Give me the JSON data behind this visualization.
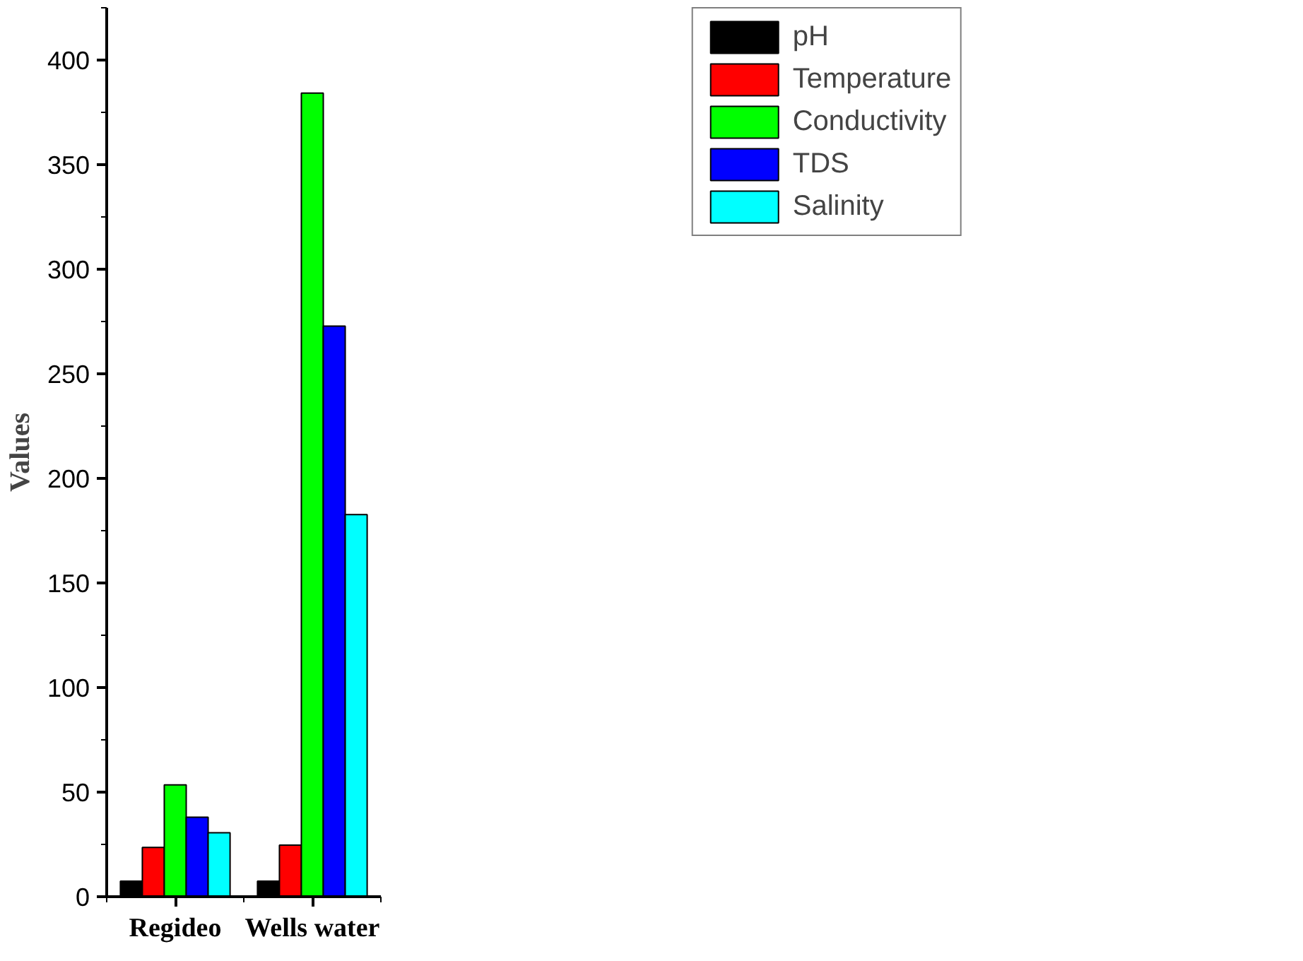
{
  "chart_data": {
    "type": "bar",
    "ylabel": "Values",
    "categories": [
      "Regideo",
      "Wells water"
    ],
    "series": [
      {
        "name": "pH",
        "color": "#000000",
        "values": [
          7.4,
          7.4
        ]
      },
      {
        "name": "Temperature",
        "color": "#ff0000",
        "values": [
          23.6,
          24.7
        ]
      },
      {
        "name": "Conductivity",
        "color": "#00ff00",
        "values": [
          53.5,
          384.2
        ]
      },
      {
        "name": "TDS",
        "color": "#0000ff",
        "values": [
          38,
          272.8
        ]
      },
      {
        "name": "Salinity",
        "color": "#00ffff",
        "values": [
          30.6,
          182.7
        ]
      }
    ],
    "ylim": [
      0,
      425
    ],
    "yticks": [
      0,
      50,
      100,
      150,
      200,
      250,
      300,
      350,
      400
    ],
    "grid": false,
    "legend": "top right"
  }
}
